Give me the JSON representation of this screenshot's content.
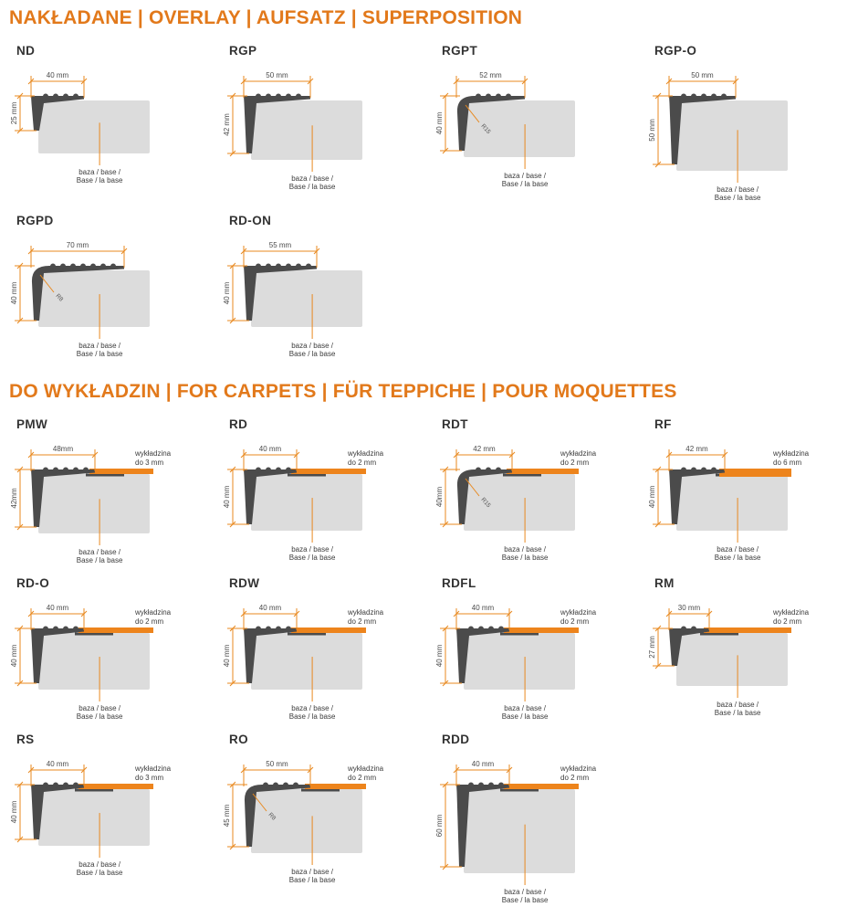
{
  "page": {
    "background": "#ffffff"
  },
  "colors": {
    "header_orange": "#e2791b",
    "accent_orange": "#e8891f",
    "carpet_orange": "#ed841c",
    "profile_dark": "#4b4b4b",
    "base_gray": "#dcdcdc",
    "text_dark": "#3c3c3c",
    "dim_text": "#4a4a4a",
    "radius_text": "#555555"
  },
  "sections": [
    {
      "id": "overlay",
      "title": "NAKŁADANE | OVERLAY | AUFSATZ | SUPERPOSITION",
      "base_label": [
        "baza / base /",
        "Base / la base"
      ],
      "profiles": [
        {
          "name": "ND",
          "width_label": "40 mm",
          "height_label": "25 mm",
          "width_mm": 40,
          "height_mm": 25
        },
        {
          "name": "RGP",
          "width_label": "50 mm",
          "height_label": "42 mm",
          "width_mm": 50,
          "height_mm": 42
        },
        {
          "name": "RGPT",
          "width_label": "52 mm",
          "height_label": "40 mm",
          "width_mm": 52,
          "height_mm": 40,
          "radius_label": "R15"
        },
        {
          "name": "RGP-O",
          "width_label": "50 mm",
          "height_label": "50 mm",
          "width_mm": 50,
          "height_mm": 50
        },
        {
          "name": "RGPD",
          "width_label": "70 mm",
          "height_label": "40 mm",
          "width_mm": 70,
          "height_mm": 40,
          "radius_label": "R8"
        },
        {
          "name": "RD-ON",
          "width_label": "55 mm",
          "height_label": "40 mm",
          "width_mm": 55,
          "height_mm": 40
        }
      ]
    },
    {
      "id": "carpets",
      "title": "DO WYKŁADZIN | FOR CARPETS | FÜR TEPPICHE | POUR MOQUETTES",
      "base_label": [
        "baza / base /",
        "Base / la base"
      ],
      "profiles": [
        {
          "name": "PMW",
          "width_label": "48mm",
          "height_label": "42mm",
          "width_mm": 48,
          "height_mm": 42,
          "carpet_label": [
            "wykładzina",
            "do 3 mm"
          ]
        },
        {
          "name": "RD",
          "width_label": "40 mm",
          "height_label": "40 mm",
          "width_mm": 40,
          "height_mm": 40,
          "carpet_label": [
            "wykładzina",
            "do 2 mm"
          ]
        },
        {
          "name": "RDT",
          "width_label": "42 mm",
          "height_label": "40mm",
          "width_mm": 42,
          "height_mm": 40,
          "radius_label": "R15",
          "carpet_label": [
            "wykładzina",
            "do 2 mm"
          ]
        },
        {
          "name": "RF",
          "width_label": "42 mm",
          "height_label": "40 mm",
          "width_mm": 42,
          "height_mm": 40,
          "thick_carpet": true,
          "carpet_label": [
            "wykładzina",
            "do 6 mm"
          ]
        },
        {
          "name": "RD-O",
          "width_label": "40 mm",
          "height_label": "40 mm",
          "width_mm": 40,
          "height_mm": 40,
          "carpet_label": [
            "wykładzina",
            "do 2 mm"
          ]
        },
        {
          "name": "RDW",
          "width_label": "40 mm",
          "height_label": "40 mm",
          "width_mm": 40,
          "height_mm": 40,
          "carpet_label": [
            "wykładzina",
            "do 2 mm"
          ]
        },
        {
          "name": "RDFL",
          "width_label": "40 mm",
          "height_label": "40 mm",
          "width_mm": 40,
          "height_mm": 40,
          "carpet_label": [
            "wykładzina",
            "do 2 mm"
          ]
        },
        {
          "name": "RM",
          "width_label": "30 mm",
          "height_label": "27 mm",
          "width_mm": 30,
          "height_mm": 27,
          "carpet_label": [
            "wykładzina",
            "do 2 mm"
          ]
        },
        {
          "name": "RS",
          "width_label": "40 mm",
          "height_label": "40 mm",
          "width_mm": 40,
          "height_mm": 40,
          "carpet_label": [
            "wykładzina",
            "do 3 mm"
          ]
        },
        {
          "name": "RO",
          "width_label": "50 mm",
          "height_label": "45 mm",
          "width_mm": 50,
          "height_mm": 45,
          "radius_label": "R8",
          "carpet_label": [
            "wykładzina",
            "do 2 mm"
          ]
        },
        {
          "name": "RDD",
          "width_label": "40 mm",
          "height_label": "60 mm",
          "width_mm": 40,
          "height_mm": 60,
          "carpet_label": [
            "wykładzina",
            "do 2 mm"
          ]
        }
      ]
    }
  ]
}
